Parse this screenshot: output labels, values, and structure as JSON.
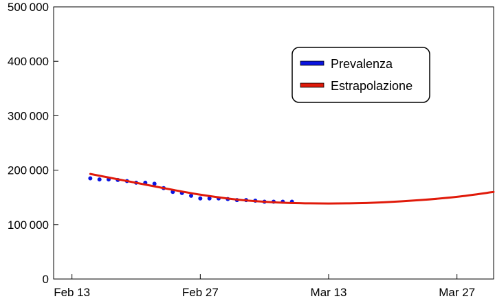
{
  "chart_data": {
    "type": "line",
    "title": "",
    "xlabel": "",
    "ylabel": "",
    "x_axis": {
      "kind": "date",
      "range": [
        "Feb 11",
        "Mar 31"
      ],
      "ticks": [
        {
          "date": "Feb 13",
          "label": "Feb 13"
        },
        {
          "date": "Feb 27",
          "label": "Feb 27"
        },
        {
          "date": "Mar 13",
          "label": "Mar 13"
        },
        {
          "date": "Mar 27",
          "label": "Mar 27"
        }
      ]
    },
    "y_axis": {
      "range": [
        0,
        500000
      ],
      "ticks": [
        {
          "value": 0,
          "label": "0"
        },
        {
          "value": 100000,
          "label": "100 000"
        },
        {
          "value": 200000,
          "label": "200 000"
        },
        {
          "value": 300000,
          "label": "300 000"
        },
        {
          "value": 400000,
          "label": "400 000"
        },
        {
          "value": 500000,
          "label": "500 000"
        }
      ]
    },
    "grid": false,
    "legend": {
      "placement": "top-right",
      "entries": [
        {
          "label": "Prevalenza",
          "color": "#0a14e0"
        },
        {
          "label": "Estrapolazione",
          "color": "#e01a0a"
        }
      ]
    },
    "series": [
      {
        "name": "Prevalenza",
        "kind": "scatter",
        "color": "#0a14e0",
        "points": [
          {
            "x": "Feb 15",
            "y": 185000
          },
          {
            "x": "Feb 16",
            "y": 183000
          },
          {
            "x": "Feb 17",
            "y": 183000
          },
          {
            "x": "Feb 18",
            "y": 182000
          },
          {
            "x": "Feb 19",
            "y": 180000
          },
          {
            "x": "Feb 20",
            "y": 177000
          },
          {
            "x": "Feb 21",
            "y": 177000
          },
          {
            "x": "Feb 22",
            "y": 175000
          },
          {
            "x": "Feb 23",
            "y": 167000
          },
          {
            "x": "Feb 24",
            "y": 160000
          },
          {
            "x": "Feb 25",
            "y": 158000
          },
          {
            "x": "Feb 26",
            "y": 153000
          },
          {
            "x": "Feb 27",
            "y": 148000
          },
          {
            "x": "Feb 28",
            "y": 148000
          },
          {
            "x": "Mar 1",
            "y": 148000
          },
          {
            "x": "Mar 2",
            "y": 147000
          },
          {
            "x": "Mar 3",
            "y": 145000
          },
          {
            "x": "Mar 4",
            "y": 145000
          },
          {
            "x": "Mar 5",
            "y": 144000
          },
          {
            "x": "Mar 6",
            "y": 142000
          },
          {
            "x": "Mar 7",
            "y": 142000
          },
          {
            "x": "Mar 8",
            "y": 142000
          },
          {
            "x": "Mar 9",
            "y": 142000
          }
        ]
      },
      {
        "name": "Estrapolazione",
        "kind": "line",
        "color": "#e01a0a",
        "points": [
          {
            "x": "Feb 15",
            "y": 193000
          },
          {
            "x": "Feb 19",
            "y": 180000
          },
          {
            "x": "Feb 23",
            "y": 167000
          },
          {
            "x": "Feb 27",
            "y": 155000
          },
          {
            "x": "Mar 3",
            "y": 146000
          },
          {
            "x": "Mar 7",
            "y": 141000
          },
          {
            "x": "Mar 11",
            "y": 139000
          },
          {
            "x": "Mar 15",
            "y": 139000
          },
          {
            "x": "Mar 19",
            "y": 141000
          },
          {
            "x": "Mar 23",
            "y": 145000
          },
          {
            "x": "Mar 27",
            "y": 151000
          },
          {
            "x": "Mar 31",
            "y": 160000
          }
        ]
      }
    ]
  }
}
